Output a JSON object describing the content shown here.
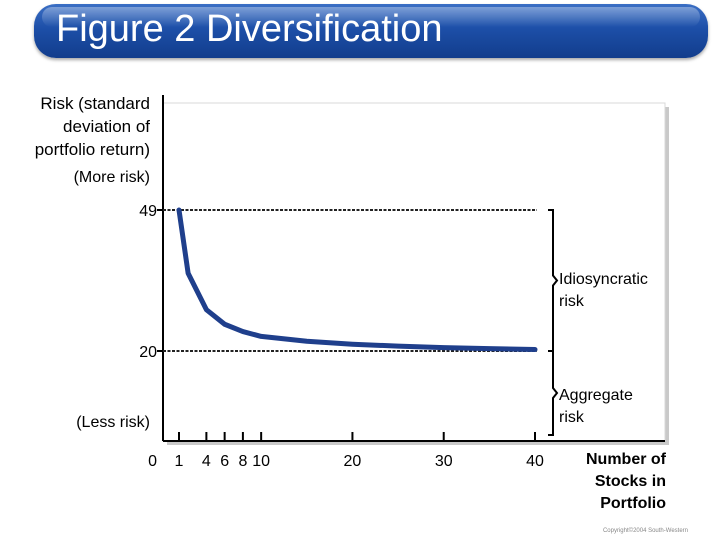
{
  "title": "Figure 2 Diversification",
  "chart_data": {
    "type": "line",
    "ylabel": [
      "Risk (standard",
      "deviation of",
      "portfolio return)"
    ],
    "y_more": "(More risk)",
    "y_less": "(Less risk)",
    "xlabel": [
      "Number of",
      "Stocks in",
      "Portfolio"
    ],
    "y_ticks": [
      {
        "label": "49",
        "value": 49
      },
      {
        "label": "20",
        "value": 20
      },
      {
        "label": "0",
        "value": 0
      }
    ],
    "x_ticks": [
      {
        "label": "1",
        "value": 1
      },
      {
        "label": "4",
        "value": 4
      },
      {
        "label": "6",
        "value": 6
      },
      {
        "label": "8",
        "value": 8
      },
      {
        "label": "10",
        "value": 10
      },
      {
        "label": "20",
        "value": 20
      },
      {
        "label": "30",
        "value": 30
      },
      {
        "label": "40",
        "value": 40
      }
    ],
    "ylim": [
      0,
      49
    ],
    "xlim": [
      0,
      40
    ],
    "series": [
      {
        "x": [
          1,
          2,
          4,
          6,
          8,
          10,
          15,
          20,
          25,
          30,
          35,
          40
        ],
        "y": [
          49,
          36,
          28.5,
          25.5,
          24,
          23,
          22,
          21.4,
          21,
          20.7,
          20.5,
          20.3
        ],
        "color": "#1f3f8c"
      }
    ],
    "reference_lines": [
      49,
      20
    ],
    "annotations": {
      "idiosyncratic": [
        "Idiosyncratic",
        "risk"
      ],
      "aggregate": [
        "Aggregate",
        "risk"
      ]
    }
  },
  "copyright": "Copyright©2004 South-Western"
}
